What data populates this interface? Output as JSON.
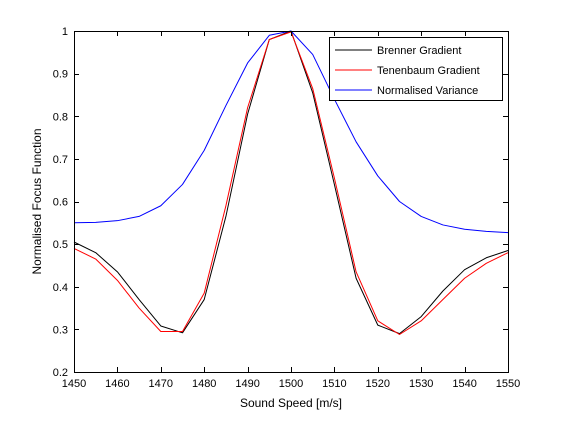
{
  "chart_data": {
    "type": "line",
    "xlabel": "Sound Speed [m/s]",
    "ylabel": "Normalised Focus Function",
    "xlim": [
      1450,
      1550
    ],
    "ylim": [
      0.2,
      1
    ],
    "xticks": [
      1450,
      1460,
      1470,
      1480,
      1490,
      1500,
      1510,
      1520,
      1530,
      1540,
      1550
    ],
    "yticks": [
      0.2,
      0.3,
      0.4,
      0.5,
      0.6,
      0.7,
      0.8,
      0.9,
      1
    ],
    "xtick_labels": [
      "1450",
      "1460",
      "1470",
      "1480",
      "1490",
      "1500",
      "1510",
      "1520",
      "1530",
      "1540",
      "1550"
    ],
    "ytick_labels": [
      "0.2",
      "0.3",
      "0.4",
      "0.5",
      "0.6",
      "0.7",
      "0.8",
      "0.9",
      "1"
    ],
    "grid": false,
    "legend_position": "top-right",
    "series": [
      {
        "name": "Brenner Gradient",
        "color": "#000000",
        "x": [
          1450,
          1455,
          1460,
          1465,
          1470,
          1475,
          1480,
          1485,
          1490,
          1495,
          1500,
          1505,
          1510,
          1515,
          1520,
          1525,
          1530,
          1535,
          1540,
          1545,
          1550
        ],
        "y": [
          0.505,
          0.48,
          0.435,
          0.37,
          0.308,
          0.292,
          0.37,
          0.565,
          0.805,
          0.98,
          1.0,
          0.855,
          0.64,
          0.42,
          0.31,
          0.29,
          0.33,
          0.39,
          0.44,
          0.468,
          0.485
        ]
      },
      {
        "name": "Tenenbaum Gradient",
        "color": "#ff0000",
        "x": [
          1450,
          1455,
          1460,
          1465,
          1470,
          1475,
          1480,
          1485,
          1490,
          1495,
          1500,
          1505,
          1510,
          1515,
          1520,
          1525,
          1530,
          1535,
          1540,
          1545,
          1550
        ],
        "y": [
          0.49,
          0.465,
          0.415,
          0.35,
          0.295,
          0.295,
          0.385,
          0.59,
          0.82,
          0.98,
          0.998,
          0.865,
          0.655,
          0.435,
          0.32,
          0.288,
          0.32,
          0.37,
          0.42,
          0.455,
          0.48
        ]
      },
      {
        "name": "Normalised Variance",
        "color": "#0000ff",
        "x": [
          1450,
          1455,
          1460,
          1465,
          1470,
          1475,
          1480,
          1485,
          1490,
          1495,
          1500,
          1505,
          1510,
          1515,
          1520,
          1525,
          1530,
          1535,
          1540,
          1545,
          1550
        ],
        "y": [
          0.55,
          0.551,
          0.555,
          0.565,
          0.59,
          0.64,
          0.72,
          0.825,
          0.925,
          0.99,
          1.0,
          0.945,
          0.84,
          0.74,
          0.66,
          0.6,
          0.565,
          0.545,
          0.535,
          0.53,
          0.527
        ]
      }
    ]
  }
}
